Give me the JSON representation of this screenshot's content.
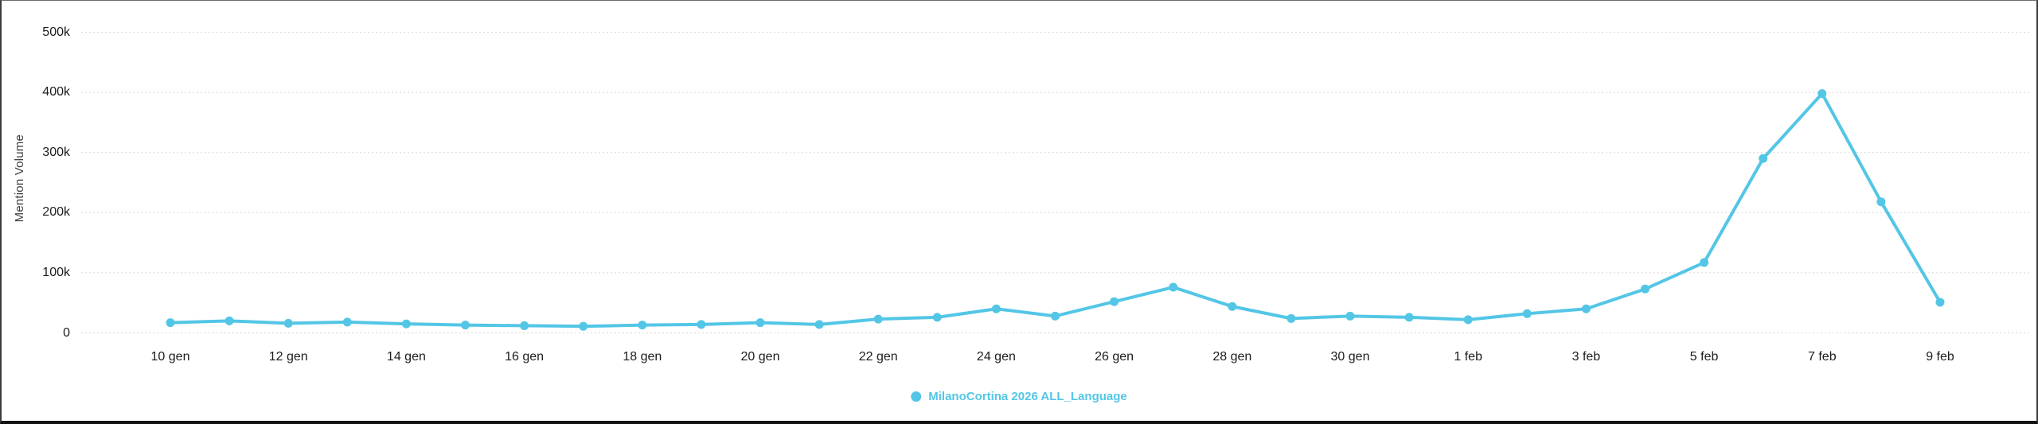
{
  "chart_data": {
    "type": "line",
    "title": "",
    "xlabel": "",
    "ylabel": "Mention Volume",
    "ylim": [
      0,
      500000
    ],
    "grid": "horizontal-dotted",
    "legend_position": "bottom-center",
    "y_ticks": [
      {
        "value": 0,
        "label": "0"
      },
      {
        "value": 100000,
        "label": "100k"
      },
      {
        "value": 200000,
        "label": "200k"
      },
      {
        "value": 300000,
        "label": "300k"
      },
      {
        "value": 400000,
        "label": "400k"
      },
      {
        "value": 500000,
        "label": "500k"
      }
    ],
    "x": [
      "10 gen",
      "11 gen",
      "12 gen",
      "13 gen",
      "14 gen",
      "15 gen",
      "16 gen",
      "17 gen",
      "18 gen",
      "19 gen",
      "20 gen",
      "21 gen",
      "22 gen",
      "23 gen",
      "24 gen",
      "25 gen",
      "26 gen",
      "27 gen",
      "28 gen",
      "29 gen",
      "30 gen",
      "31 gen",
      "1 feb",
      "2 feb",
      "3 feb",
      "4 feb",
      "5 feb",
      "6 feb",
      "7 feb",
      "8 feb",
      "9 feb"
    ],
    "x_tick_labels": [
      "10 gen",
      "12 gen",
      "14 gen",
      "16 gen",
      "18 gen",
      "20 gen",
      "22 gen",
      "24 gen",
      "26 gen",
      "28 gen",
      "30 gen",
      "1 feb",
      "3 feb",
      "5 feb",
      "7 feb",
      "9 feb"
    ],
    "series": [
      {
        "name": "MilanoCortina 2026 ALL_Language",
        "color": "#53c6e6",
        "values": [
          17000,
          20000,
          16000,
          18000,
          15000,
          13000,
          12000,
          11000,
          13000,
          14000,
          17000,
          14000,
          23000,
          26000,
          40000,
          28000,
          52000,
          76000,
          44000,
          24000,
          28000,
          26000,
          22000,
          32000,
          40000,
          73000,
          117000,
          290000,
          398000,
          218000,
          51000
        ]
      }
    ],
    "colors": {
      "grid": "#d8d8d8",
      "tick_text": "#1c1c1c",
      "axis_title_text": "#3d3d3d"
    }
  }
}
